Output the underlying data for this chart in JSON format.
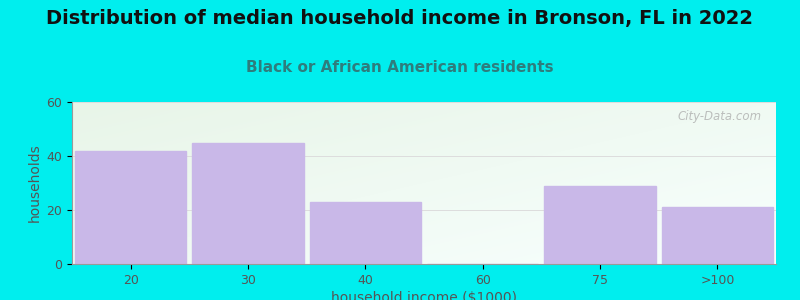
{
  "title": "Distribution of median household income in Bronson, FL in 2022",
  "subtitle": "Black or African American residents",
  "xlabel": "household income ($1000)",
  "ylabel": "households",
  "categories": [
    "20",
    "30",
    "40",
    "60",
    "75",
    ">100"
  ],
  "values": [
    42,
    45,
    23,
    0,
    29,
    21
  ],
  "bar_color": "#C9B8E8",
  "bar_edgecolor": "#C9B8E8",
  "background_color": "#00EEEE",
  "plot_bg_top_left": "#E8F5E8",
  "plot_bg_bottom_right": "#F8FFFE",
  "ylim": [
    0,
    60
  ],
  "yticks": [
    0,
    20,
    40,
    60
  ],
  "title_fontsize": 14,
  "subtitle_fontsize": 11,
  "axis_label_fontsize": 10,
  "tick_fontsize": 9,
  "title_color": "#111111",
  "subtitle_color": "#2E7D7D",
  "ylabel_color": "#555555",
  "xlabel_color": "#555555",
  "tick_color": "#555555",
  "watermark": "City-Data.com",
  "grid_color": "#DDDDDD"
}
